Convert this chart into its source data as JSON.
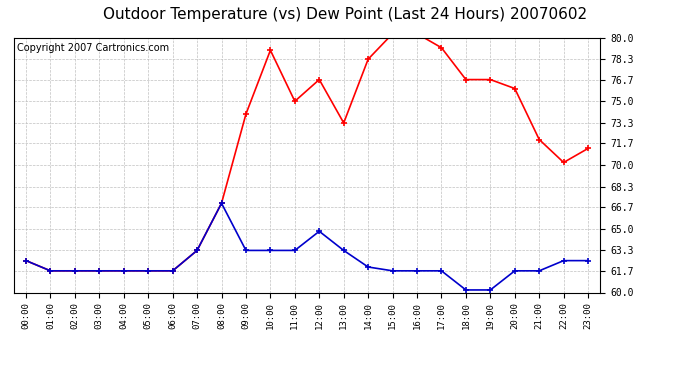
{
  "title": "Outdoor Temperature (vs) Dew Point (Last 24 Hours) 20070602",
  "copyright_text": "Copyright 2007 Cartronics.com",
  "hours": [
    "00:00",
    "01:00",
    "02:00",
    "03:00",
    "04:00",
    "05:00",
    "06:00",
    "07:00",
    "08:00",
    "09:00",
    "10:00",
    "11:00",
    "12:00",
    "13:00",
    "14:00",
    "15:00",
    "16:00",
    "17:00",
    "18:00",
    "19:00",
    "20:00",
    "21:00",
    "22:00",
    "23:00"
  ],
  "temp_red": [
    62.5,
    61.7,
    61.7,
    61.7,
    61.7,
    61.7,
    61.7,
    63.3,
    67.0,
    74.0,
    79.0,
    75.0,
    76.7,
    73.3,
    78.3,
    80.3,
    80.3,
    79.2,
    76.7,
    76.7,
    76.0,
    72.0,
    70.2,
    71.3
  ],
  "dew_blue": [
    62.5,
    61.7,
    61.7,
    61.7,
    61.7,
    61.7,
    61.7,
    63.3,
    67.0,
    63.3,
    63.3,
    63.3,
    64.8,
    63.3,
    62.0,
    61.7,
    61.7,
    61.7,
    60.2,
    60.2,
    61.7,
    61.7,
    62.5,
    62.5
  ],
  "ylim": [
    60.0,
    80.0
  ],
  "yticks": [
    60.0,
    61.7,
    63.3,
    65.0,
    66.7,
    68.3,
    70.0,
    71.7,
    73.3,
    75.0,
    76.7,
    78.3,
    80.0
  ],
  "temp_color": "#ff0000",
  "dew_color": "#0000cc",
  "bg_color": "#ffffff",
  "plot_bg_color": "#ffffff",
  "grid_color": "#c0c0c0",
  "title_fontsize": 11,
  "copyright_fontsize": 7
}
